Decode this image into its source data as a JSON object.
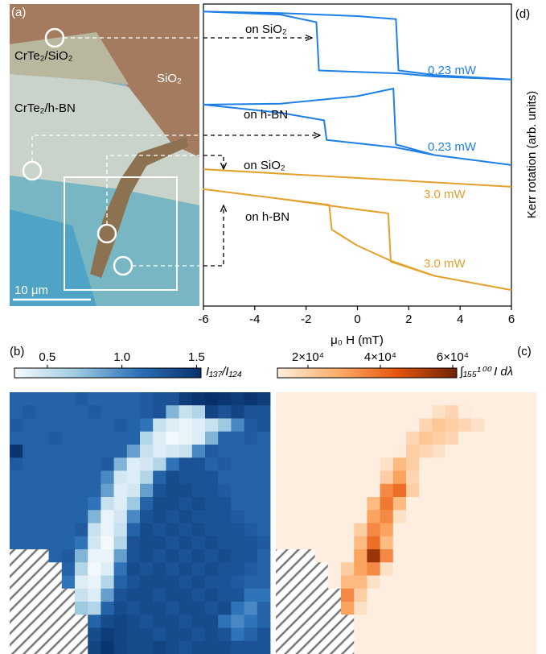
{
  "chart_data": [
    {
      "type": "image",
      "panel_label": "(a)",
      "annotations": [
        "CrTe₂/SiO₂",
        "SiO₂",
        "CrTe₂/h-BN",
        "10 μm"
      ]
    },
    {
      "type": "line",
      "panel_label": "(d)",
      "xlabel": "μ₀ H (mT)",
      "ylabel": "Kerr rotation (arb. units)",
      "xlim": [
        -6,
        6
      ],
      "xticks": [
        -6,
        -4,
        -2,
        0,
        2,
        4,
        6
      ],
      "ylim": [
        0,
        100
      ],
      "series": [
        {
          "color": "#1e7fe6",
          "x": [
            6,
            3,
            1.7,
            -1.5,
            -1.6,
            -3,
            -6,
            -3,
            0,
            1.5,
            1.6,
            3,
            6
          ],
          "values": [
            75,
            76,
            77,
            78,
            94,
            96.5,
            97.5,
            97,
            96,
            95,
            78,
            76.5,
            75
          ]
        },
        {
          "color": "#1e7fe6",
          "x": [
            6,
            3,
            1.5,
            -1.2,
            -1.3,
            -3,
            -6,
            -3,
            0,
            1.4,
            1.5,
            3,
            6
          ],
          "values": [
            46.7,
            50,
            52.5,
            55,
            61.5,
            64,
            66.7,
            67,
            69.5,
            72,
            53.5,
            50,
            46.7
          ]
        },
        {
          "color": "#e3a02a",
          "x": [
            -6,
            6
          ],
          "values": [
            45.3,
            39.5
          ]
        },
        {
          "color": "#e3a02a",
          "x": [
            6,
            3,
            1.3,
            0,
            -1.0,
            -1.1,
            -3,
            -6,
            -3,
            0,
            1.2,
            1.3,
            3,
            6
          ],
          "values": [
            5.3,
            10,
            15,
            20,
            25.3,
            33.5,
            35.5,
            38.7,
            35.5,
            32,
            30.7,
            14.7,
            10,
            5.3
          ]
        }
      ],
      "annotations": [
        {
          "text": "on SiO₂",
          "color": "#000000"
        },
        {
          "text": "0.23 mW",
          "color": "#1e7fe6"
        },
        {
          "text": "on h-BN",
          "color": "#000000"
        },
        {
          "text": "0.23 mW",
          "color": "#1e7fe6"
        },
        {
          "text": "on SiO₂",
          "color": "#000000"
        },
        {
          "text": "3.0 mW",
          "color": "#e3a02a"
        },
        {
          "text": "on h-BN",
          "color": "#000000"
        },
        {
          "text": "3.0 mW",
          "color": "#e3a02a"
        }
      ]
    },
    {
      "type": "heatmap",
      "panel_label": "(b)",
      "colorbar_label": "I₁₃₇/I₁₂₄",
      "clim": [
        0.28,
        1.53
      ],
      "cticks": [
        0.5,
        {
          "value": 1,
          "label": "1.0"
        },
        1.5
      ],
      "colormap": [
        "#f7fbff",
        "#9ecae1",
        "#2b70b8",
        "#08306b"
      ],
      "values": [
        [
          1.2,
          1.2,
          1.2,
          1.2,
          1.2,
          1.25,
          1.2,
          1.2,
          1.2,
          1.2,
          1.25,
          1.3,
          1.3,
          1.45,
          1.5,
          1.55,
          1.5,
          1.45,
          1.5,
          1.45
        ],
        [
          1.2,
          1.25,
          1.2,
          1.2,
          1.2,
          1.2,
          1.25,
          1.2,
          1.2,
          1.2,
          1.25,
          1.3,
          0.8,
          0.5,
          0.6,
          1.4,
          1.3,
          1.4,
          1.3,
          1.3
        ],
        [
          1.25,
          1.2,
          1.2,
          1.2,
          1.2,
          1.2,
          1.2,
          1.2,
          1.25,
          1.2,
          1.1,
          0.5,
          0.4,
          0.35,
          0.4,
          0.5,
          0.7,
          1.0,
          1.25,
          1.3
        ],
        [
          1.2,
          1.2,
          1.2,
          1.25,
          1.2,
          1.2,
          1.2,
          1.2,
          1.2,
          1.2,
          0.6,
          0.4,
          0.3,
          0.35,
          0.4,
          0.8,
          1.2,
          1.2,
          1.25,
          1.2
        ],
        [
          1.5,
          1.2,
          1.2,
          1.2,
          1.2,
          1.2,
          1.2,
          1.2,
          1.2,
          0.9,
          0.5,
          0.4,
          0.45,
          0.5,
          1.0,
          1.25,
          1.2,
          1.2,
          1.2,
          1.2
        ],
        [
          1.25,
          1.2,
          1.2,
          1.2,
          1.2,
          1.2,
          1.2,
          1.25,
          0.8,
          0.4,
          0.45,
          0.6,
          1.1,
          1.3,
          1.3,
          1.2,
          1.25,
          1.2,
          1.2,
          1.2
        ],
        [
          1.2,
          1.2,
          1.2,
          1.2,
          1.2,
          1.2,
          1.2,
          1.0,
          0.45,
          0.4,
          0.6,
          1.2,
          1.35,
          1.3,
          1.3,
          1.3,
          1.2,
          1.2,
          1.2,
          1.2
        ],
        [
          1.2,
          1.2,
          1.2,
          1.2,
          1.2,
          1.2,
          1.2,
          0.9,
          0.4,
          0.45,
          0.9,
          1.3,
          1.35,
          1.35,
          1.3,
          1.3,
          1.25,
          1.2,
          1.2,
          1.2
        ],
        [
          1.2,
          1.2,
          1.2,
          1.2,
          1.2,
          1.2,
          1.1,
          0.5,
          0.4,
          0.7,
          1.2,
          1.35,
          1.35,
          1.3,
          1.35,
          1.3,
          1.3,
          1.2,
          1.2,
          1.2
        ],
        [
          1.2,
          1.2,
          1.2,
          1.2,
          1.2,
          1.2,
          0.8,
          0.35,
          0.45,
          1.0,
          1.3,
          1.35,
          1.3,
          1.35,
          1.3,
          1.3,
          1.3,
          1.25,
          1.2,
          1.2
        ],
        [
          1.2,
          1.2,
          1.2,
          1.2,
          1.2,
          1.25,
          0.5,
          0.35,
          0.5,
          1.2,
          1.35,
          1.3,
          1.35,
          1.3,
          1.35,
          1.3,
          1.3,
          1.3,
          1.25,
          1.2
        ],
        [
          1.2,
          1.2,
          1.2,
          1.2,
          1.2,
          1.1,
          0.45,
          0.3,
          0.6,
          1.3,
          1.35,
          1.35,
          1.3,
          1.35,
          1.3,
          1.35,
          1.3,
          1.3,
          1.3,
          1.25
        ],
        [
          null,
          null,
          null,
          1.2,
          1.25,
          0.8,
          0.35,
          0.35,
          0.9,
          1.3,
          1.35,
          1.3,
          1.35,
          1.3,
          1.35,
          1.3,
          1.35,
          1.3,
          1.3,
          1.2
        ],
        [
          null,
          null,
          null,
          null,
          1.2,
          0.6,
          0.3,
          0.4,
          1.1,
          1.35,
          1.3,
          1.35,
          1.3,
          1.35,
          1.3,
          1.35,
          1.3,
          1.3,
          1.25,
          1.2
        ],
        [
          null,
          null,
          null,
          null,
          1.1,
          0.4,
          0.35,
          0.6,
          1.2,
          1.3,
          1.35,
          1.35,
          1.35,
          1.3,
          1.35,
          1.3,
          1.3,
          1.25,
          1.2,
          1.2
        ],
        [
          null,
          null,
          null,
          null,
          null,
          0.5,
          0.4,
          0.9,
          1.3,
          1.35,
          1.35,
          1.3,
          1.35,
          1.35,
          1.3,
          1.35,
          1.3,
          1.3,
          1.1,
          1.1
        ],
        [
          null,
          null,
          null,
          null,
          null,
          0.7,
          0.6,
          1.2,
          1.35,
          1.3,
          1.35,
          1.35,
          1.3,
          1.35,
          1.35,
          1.3,
          1.35,
          1.1,
          1.0,
          1.2
        ],
        [
          null,
          null,
          null,
          null,
          null,
          null,
          1.2,
          1.35,
          1.4,
          1.35,
          1.3,
          1.35,
          1.35,
          1.3,
          1.35,
          1.35,
          1.1,
          1.0,
          1.1,
          1.2
        ],
        [
          null,
          null,
          null,
          null,
          null,
          null,
          1.35,
          1.45,
          1.4,
          1.35,
          1.35,
          1.3,
          1.35,
          1.35,
          1.3,
          1.35,
          1.3,
          1.1,
          1.2,
          1.3
        ],
        [
          null,
          null,
          null,
          null,
          null,
          null,
          1.4,
          1.5,
          1.4,
          1.35,
          1.35,
          1.4,
          1.35,
          1.3,
          1.35,
          1.35,
          1.35,
          1.3,
          1.3,
          1.3
        ]
      ]
    },
    {
      "type": "heatmap",
      "panel_label": "(c)",
      "colorbar_label": "∫₁₅₅¹⁰⁰ I dλ",
      "clim": [
        11556,
        61111
      ],
      "cticks": [
        {
          "value": 20000,
          "label": "2×10⁴"
        },
        {
          "value": 40000,
          "label": "4×10⁴"
        },
        {
          "value": 60000,
          "label": "6×10⁴"
        }
      ],
      "colormap": [
        "#fdeedf",
        "#fdae6b",
        "#e6550d",
        "#6e2303"
      ],
      "values": [
        [
          3000,
          3000,
          3000,
          3000,
          3000,
          3000,
          3000,
          3000,
          3000,
          3000,
          3000,
          4000,
          6000,
          8000,
          9000,
          8000,
          6000,
          4000,
          3000,
          3000
        ],
        [
          3000,
          3000,
          3000,
          3000,
          3000,
          3000,
          3000,
          3000,
          3000,
          3000,
          5000,
          6000,
          15000,
          18000,
          12000,
          8000,
          5000,
          4000,
          3000,
          3000
        ],
        [
          3000,
          3000,
          3000,
          3000,
          3000,
          3000,
          3000,
          3000,
          3000,
          3000,
          8000,
          18000,
          22000,
          20000,
          18000,
          15000,
          10000,
          6000,
          4000,
          3000
        ],
        [
          3000,
          3000,
          3000,
          3000,
          3000,
          3000,
          3000,
          3000,
          3000,
          6000,
          18000,
          22000,
          20000,
          18000,
          10000,
          5000,
          4000,
          3000,
          3000,
          3000
        ],
        [
          3000,
          3000,
          3000,
          3000,
          3000,
          3000,
          3000,
          3000,
          4000,
          12000,
          20000,
          18000,
          15000,
          8000,
          4000,
          3000,
          3000,
          3000,
          3000,
          3000
        ],
        [
          3000,
          3000,
          3000,
          3000,
          3000,
          3000,
          3000,
          3000,
          15000,
          25000,
          20000,
          10000,
          4000,
          3000,
          3000,
          3000,
          3000,
          3000,
          3000,
          3000
        ],
        [
          3000,
          3000,
          3000,
          3000,
          3000,
          3000,
          3000,
          5000,
          20000,
          30000,
          18000,
          5000,
          3000,
          3000,
          3000,
          3000,
          3000,
          3000,
          3000,
          3000
        ],
        [
          3000,
          3000,
          3000,
          3000,
          3000,
          3000,
          3000,
          6000,
          35000,
          40000,
          20000,
          4000,
          3000,
          3000,
          3000,
          3000,
          3000,
          3000,
          3000,
          3000
        ],
        [
          3000,
          3000,
          3000,
          3000,
          3000,
          3000,
          4000,
          25000,
          38000,
          25000,
          6000,
          3000,
          3000,
          3000,
          3000,
          3000,
          3000,
          3000,
          3000,
          3000
        ],
        [
          3000,
          3000,
          3000,
          3000,
          3000,
          3000,
          8000,
          30000,
          35000,
          15000,
          4000,
          3000,
          3000,
          3000,
          3000,
          3000,
          3000,
          3000,
          3000,
          3000
        ],
        [
          3000,
          3000,
          3000,
          3000,
          3000,
          4000,
          20000,
          35000,
          30000,
          8000,
          3000,
          3000,
          3000,
          3000,
          3000,
          3000,
          3000,
          3000,
          3000,
          3000
        ],
        [
          3000,
          3000,
          3000,
          3000,
          3000,
          6000,
          25000,
          40000,
          25000,
          5000,
          3000,
          3000,
          3000,
          3000,
          3000,
          3000,
          3000,
          3000,
          3000,
          3000
        ],
        [
          null,
          null,
          null,
          3000,
          3000,
          10000,
          30000,
          55000,
          35000,
          5000,
          3000,
          3000,
          3000,
          3000,
          3000,
          3000,
          3000,
          3000,
          3000,
          3000
        ],
        [
          null,
          null,
          null,
          null,
          3000,
          20000,
          30000,
          35000,
          15000,
          4000,
          3000,
          3000,
          3000,
          3000,
          3000,
          3000,
          3000,
          3000,
          3000,
          3000
        ],
        [
          null,
          null,
          null,
          null,
          5000,
          25000,
          25000,
          15000,
          5000,
          3000,
          3000,
          3000,
          3000,
          3000,
          3000,
          3000,
          3000,
          3000,
          3000,
          3000
        ],
        [
          null,
          null,
          null,
          null,
          null,
          35000,
          20000,
          8000,
          4000,
          3000,
          3000,
          3000,
          3000,
          3000,
          3000,
          3000,
          3000,
          3000,
          3000,
          3000
        ],
        [
          null,
          null,
          null,
          null,
          null,
          30000,
          15000,
          5000,
          3000,
          3000,
          3000,
          3000,
          3000,
          3000,
          3000,
          3000,
          3000,
          3000,
          3000,
          3000
        ],
        [
          null,
          null,
          null,
          null,
          null,
          null,
          8000,
          5000,
          3000,
          3000,
          3000,
          3000,
          3000,
          3000,
          3000,
          3000,
          3000,
          3000,
          3000,
          3000
        ],
        [
          null,
          null,
          null,
          null,
          null,
          null,
          4000,
          3000,
          3000,
          3000,
          3000,
          3000,
          3000,
          3000,
          3000,
          3000,
          3000,
          3000,
          3000,
          3000
        ],
        [
          null,
          null,
          null,
          null,
          null,
          null,
          3000,
          3000,
          3000,
          3000,
          3000,
          3000,
          3000,
          3000,
          3000,
          3000,
          3000,
          3000,
          3000,
          3000
        ]
      ]
    }
  ]
}
